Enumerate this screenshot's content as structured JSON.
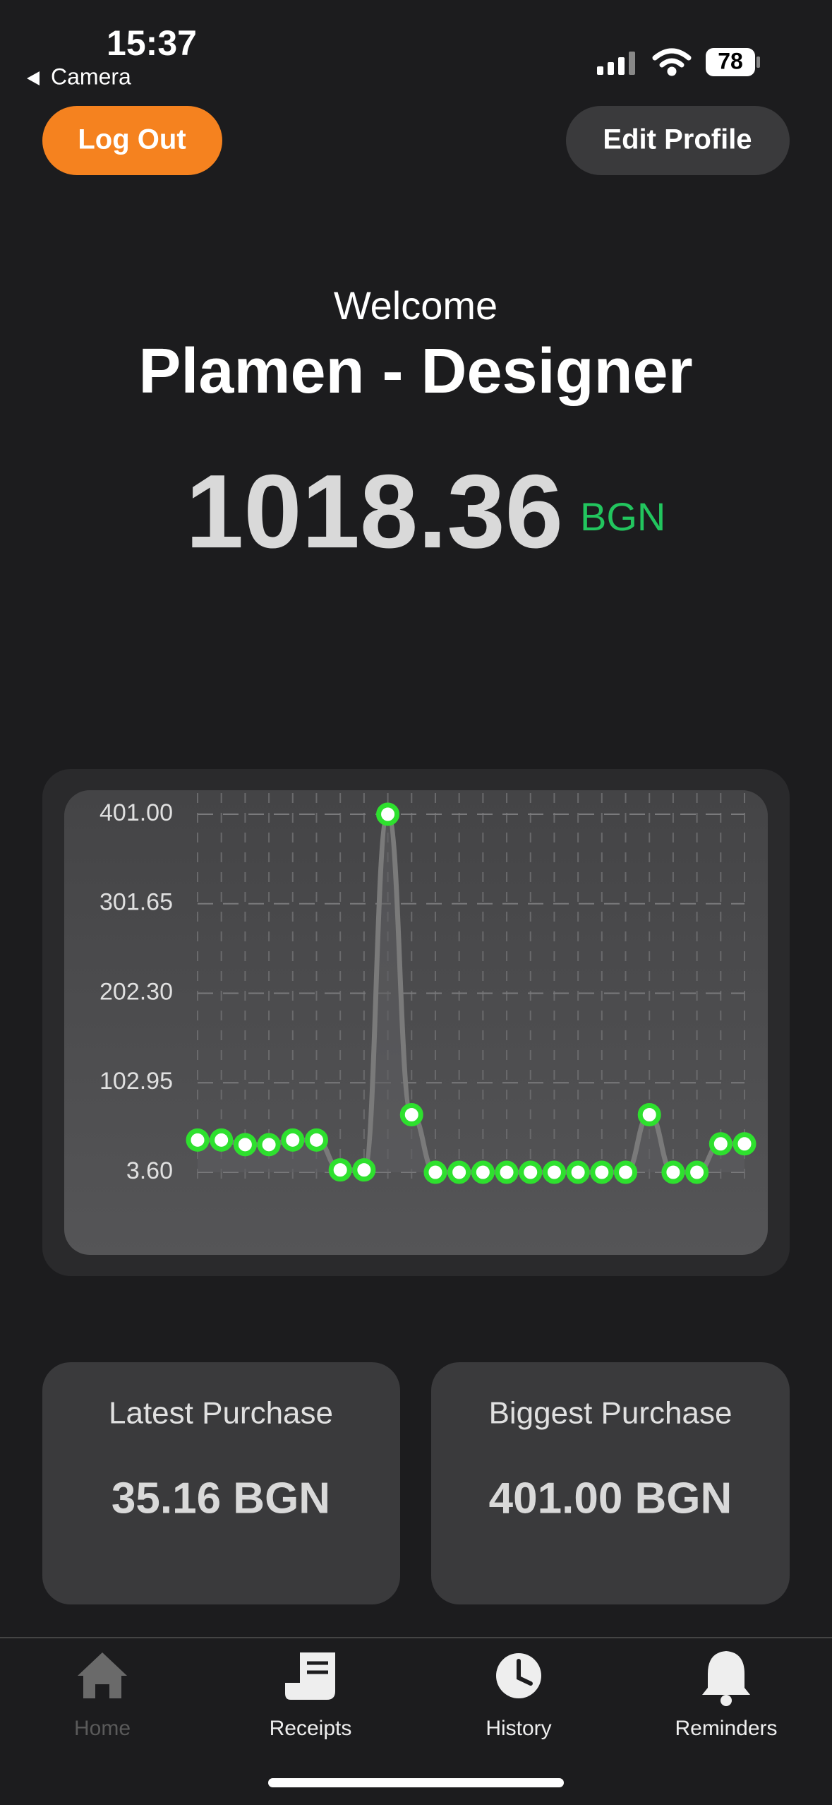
{
  "status": {
    "time": "15:37",
    "back": "Camera",
    "battery": "78"
  },
  "header": {
    "logout": "Log Out",
    "edit": "Edit Profile"
  },
  "welcome": "Welcome",
  "user": "Plamen - Designer",
  "balance": {
    "amount": "1018.36",
    "currency": "BGN"
  },
  "chart_data": {
    "type": "line",
    "values": [
      39.4,
      39.4,
      34.3,
      34.3,
      39.4,
      39.4,
      6.2,
      6.2,
      401.0,
      67.5,
      3.6,
      3.6,
      3.6,
      3.6,
      3.6,
      3.6,
      3.6,
      3.6,
      3.6,
      67.5,
      3.6,
      3.6,
      35.16,
      35.16
    ],
    "ylim": [
      3.6,
      401.0
    ],
    "yticks": [
      {
        "value": 3.6,
        "label": "3.60"
      },
      {
        "value": 102.95,
        "label": "102.95"
      },
      {
        "value": 202.3,
        "label": "202.30"
      },
      {
        "value": 301.65,
        "label": "301.65"
      },
      {
        "value": 401.0,
        "label": "401.00"
      }
    ],
    "grid": true,
    "color": "#7a7a7a",
    "marker_color": "#2ee02e"
  },
  "cards": [
    {
      "title": "Latest Purchase",
      "value": "35.16 BGN"
    },
    {
      "title": "Biggest Purchase",
      "value": "401.00 BGN"
    }
  ],
  "nav": [
    "Home",
    "Receipts",
    "History",
    "Reminders"
  ]
}
